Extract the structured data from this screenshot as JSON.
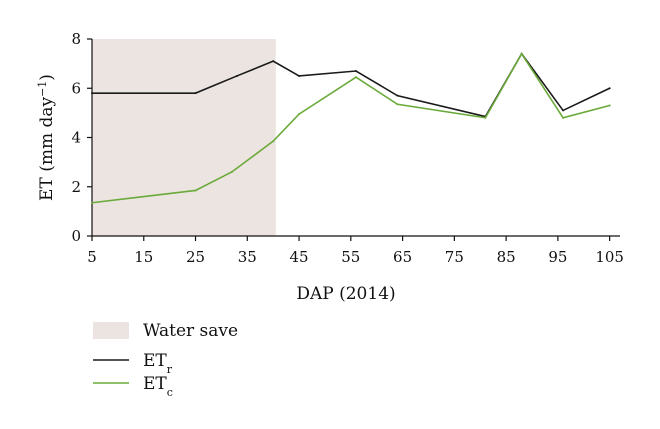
{
  "chart_data": {
    "type": "line",
    "xlabel": "DAP (2014)",
    "ylabel": {
      "prefix": "ET (mm day",
      "superscript": "−1",
      "suffix": ")"
    },
    "xlim": [
      5,
      107
    ],
    "ylim": [
      0,
      8
    ],
    "xticks": [
      5,
      15,
      25,
      35,
      45,
      55,
      65,
      75,
      85,
      95,
      105
    ],
    "yticks": [
      0,
      2,
      4,
      6,
      8
    ],
    "shaded_region": {
      "label": "Water save",
      "x_start": 5,
      "x_end": 40.5,
      "color": "#ece4e0"
    },
    "series": [
      {
        "key": "etr",
        "name": {
          "base": "ET",
          "sub": "r"
        },
        "color": "#1a1a1a",
        "x": [
          5,
          25,
          33,
          40,
          45,
          56,
          64,
          81,
          88,
          96,
          105
        ],
        "y": [
          5.8,
          5.8,
          6.5,
          7.1,
          6.5,
          6.7,
          5.7,
          4.85,
          7.4,
          5.1,
          6.0
        ]
      },
      {
        "key": "etc",
        "name": {
          "base": "ET",
          "sub": "c"
        },
        "color": "#6aaa3a",
        "x": [
          5,
          25,
          32,
          40,
          45,
          56,
          64,
          81,
          88,
          96,
          105
        ],
        "y": [
          1.35,
          1.85,
          2.6,
          3.85,
          4.95,
          6.45,
          5.35,
          4.8,
          7.4,
          4.8,
          5.3
        ]
      }
    ],
    "legend_position": "bottom-left"
  }
}
